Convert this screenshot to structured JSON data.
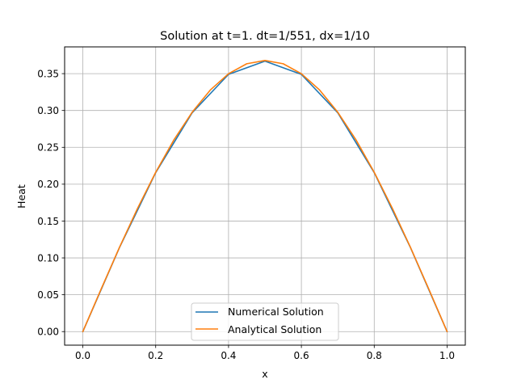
{
  "chart_data": {
    "type": "line",
    "title": "Solution at t=1. dt=1/551, dx=1/10",
    "xlabel": "x",
    "ylabel": "Heat",
    "xlim": [
      -0.05,
      1.05
    ],
    "ylim": [
      -0.0184,
      0.3863
    ],
    "xticks": [
      0.0,
      0.2,
      0.4,
      0.6,
      0.8,
      1.0
    ],
    "xtick_labels": [
      "0.0",
      "0.2",
      "0.4",
      "0.6",
      "0.8",
      "1.0"
    ],
    "yticks": [
      0.0,
      0.05,
      0.1,
      0.15,
      0.2,
      0.25,
      0.3,
      0.35
    ],
    "ytick_labels": [
      "0.00",
      "0.05",
      "0.10",
      "0.15",
      "0.20",
      "0.25",
      "0.30",
      "0.35"
    ],
    "grid": true,
    "legend_position": "lower center",
    "series": [
      {
        "name": "Numerical Solution",
        "color": "#1f77b4",
        "x": [
          0.0,
          0.1,
          0.2,
          0.3,
          0.4,
          0.5,
          0.6,
          0.7,
          0.8,
          0.9,
          1.0
        ],
        "y": [
          0.0,
          0.1134,
          0.2157,
          0.2968,
          0.349,
          0.367,
          0.349,
          0.2968,
          0.2157,
          0.1134,
          0.0
        ]
      },
      {
        "name": "Analytical Solution",
        "color": "#ff7f0e",
        "x": [
          0.0,
          0.05,
          0.1,
          0.15,
          0.2,
          0.25,
          0.3,
          0.35,
          0.4,
          0.45,
          0.5,
          0.55,
          0.6,
          0.65,
          0.7,
          0.75,
          0.8,
          0.85,
          0.9,
          0.95,
          1.0
        ],
        "y": [
          0.0,
          0.0575,
          0.1137,
          0.167,
          0.2162,
          0.2601,
          0.2976,
          0.3278,
          0.3499,
          0.3634,
          0.3679,
          0.3634,
          0.3499,
          0.3278,
          0.2976,
          0.2601,
          0.2162,
          0.167,
          0.1137,
          0.0575,
          0.0
        ]
      }
    ]
  }
}
